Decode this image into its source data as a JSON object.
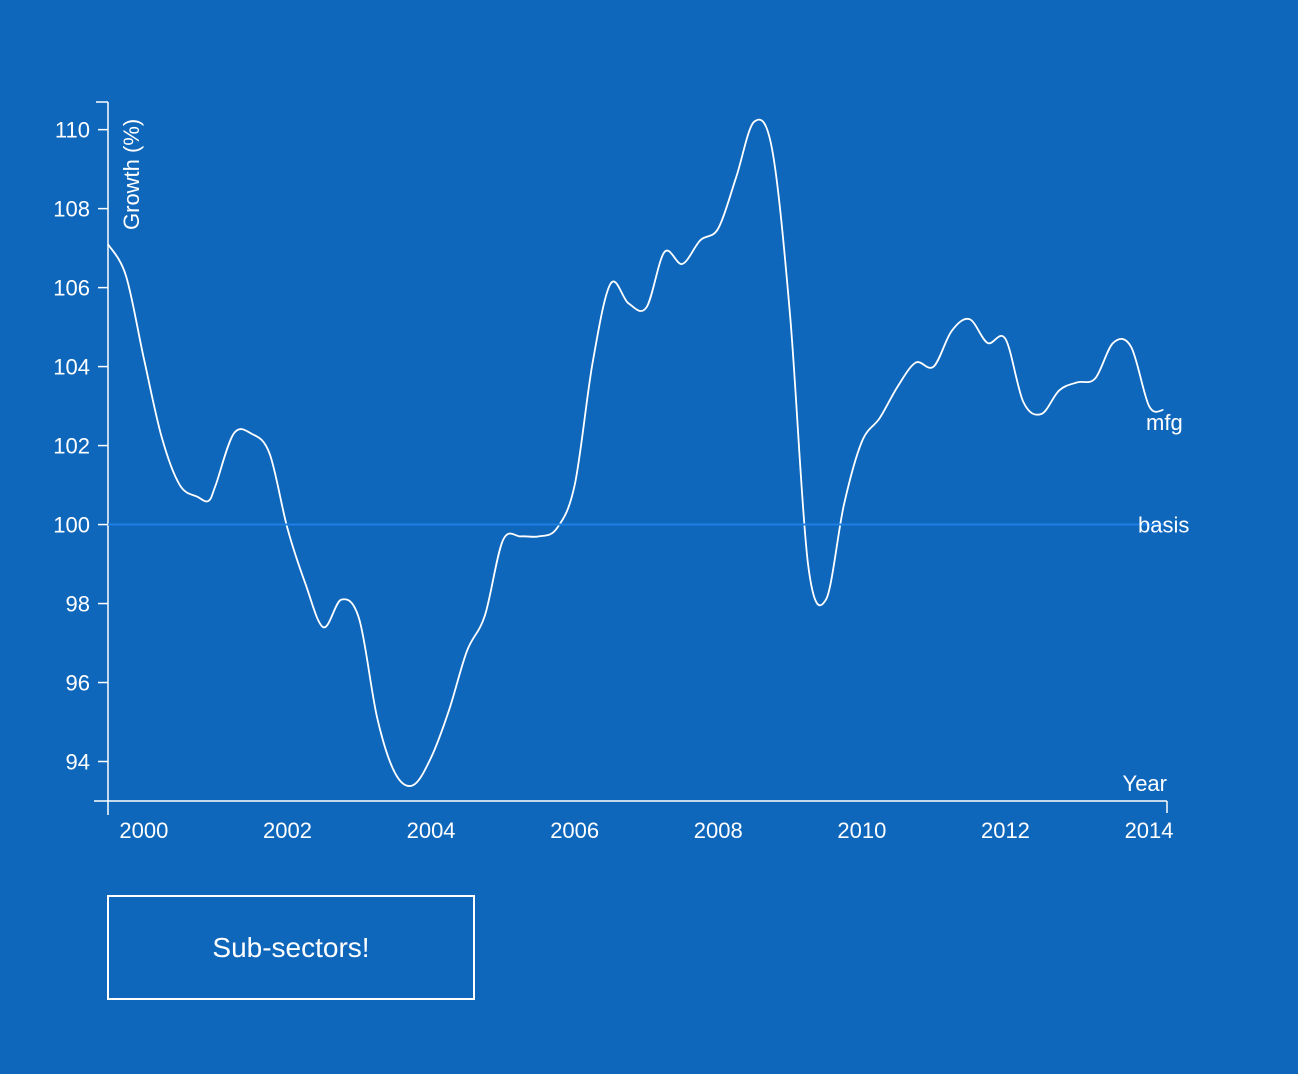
{
  "chart_data": {
    "type": "line",
    "title": "",
    "xlabel": "Year",
    "ylabel": "Growth (%)",
    "xlim": [
      1999.5,
      2014.25
    ],
    "ylim": [
      93,
      110.7
    ],
    "x_ticks": [
      2000,
      2002,
      2004,
      2006,
      2008,
      2010,
      2012,
      2014
    ],
    "y_ticks": [
      94,
      96,
      98,
      100,
      102,
      104,
      106,
      108,
      110
    ],
    "grid": false,
    "series": [
      {
        "name": "mfg",
        "color": "#ffffff",
        "x": [
          1999.5,
          1999.75,
          2000.0,
          2000.25,
          2000.5,
          2000.75,
          2000.9,
          2001.0,
          2001.25,
          2001.5,
          2001.75,
          2002.0,
          2002.25,
          2002.5,
          2002.75,
          2003.0,
          2003.25,
          2003.5,
          2003.75,
          2004.0,
          2004.25,
          2004.5,
          2004.75,
          2005.0,
          2005.25,
          2005.5,
          2005.75,
          2006.0,
          2006.25,
          2006.5,
          2006.75,
          2007.0,
          2007.25,
          2007.5,
          2007.75,
          2008.0,
          2008.25,
          2008.5,
          2008.75,
          2009.0,
          2009.25,
          2009.5,
          2009.75,
          2010.0,
          2010.25,
          2010.5,
          2010.75,
          2011.0,
          2011.25,
          2011.5,
          2011.75,
          2012.0,
          2012.25,
          2012.5,
          2012.75,
          2013.0,
          2013.25,
          2013.5,
          2013.75,
          2014.0,
          2014.2
        ],
        "values": [
          107.1,
          106.3,
          104.2,
          102.2,
          101.0,
          100.7,
          100.6,
          101.0,
          102.3,
          102.3,
          101.8,
          99.9,
          98.5,
          97.4,
          98.1,
          97.6,
          95.1,
          93.7,
          93.4,
          94.1,
          95.3,
          96.8,
          97.7,
          99.6,
          99.7,
          99.7,
          99.9,
          101.0,
          104.1,
          106.1,
          105.6,
          105.5,
          106.9,
          106.6,
          107.2,
          107.5,
          108.8,
          110.2,
          109.5,
          105.3,
          99.0,
          98.1,
          100.5,
          102.1,
          102.7,
          103.5,
          104.1,
          104.0,
          104.9,
          105.2,
          104.6,
          104.7,
          103.1,
          102.8,
          103.4,
          103.6,
          103.7,
          104.6,
          104.5,
          103.0,
          102.9
        ]
      },
      {
        "name": "basis",
        "color": "#1e80e6",
        "x": [
          1999.5,
          2014.25
        ],
        "values": [
          100,
          100
        ]
      }
    ]
  },
  "buttons": {
    "subsectors_label": "Sub-sectors!"
  }
}
